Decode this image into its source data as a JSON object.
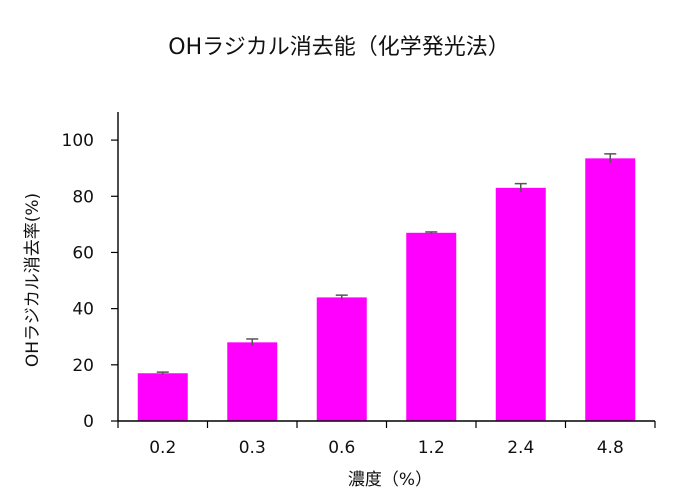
{
  "chart_data": {
    "type": "bar",
    "title": "OHラジカル消去能（化学発光法）",
    "xlabel": "濃度（%）",
    "ylabel": "OHラジカル消去率(%)",
    "categories": [
      "0.2",
      "0.3",
      "0.6",
      "1.2",
      "2.4",
      "4.8"
    ],
    "values": [
      17,
      28,
      44,
      67,
      83,
      93.5
    ],
    "errors": [
      0.4,
      1.2,
      0.8,
      0.3,
      1.5,
      1.6
    ],
    "ylim": [
      0,
      110
    ],
    "yticks": [
      0,
      20,
      40,
      60,
      80,
      100
    ],
    "grid": false,
    "legend": "none",
    "bar_color": "#ff00ff",
    "error_bar_color": "#555555",
    "axis_color": "#000000"
  }
}
